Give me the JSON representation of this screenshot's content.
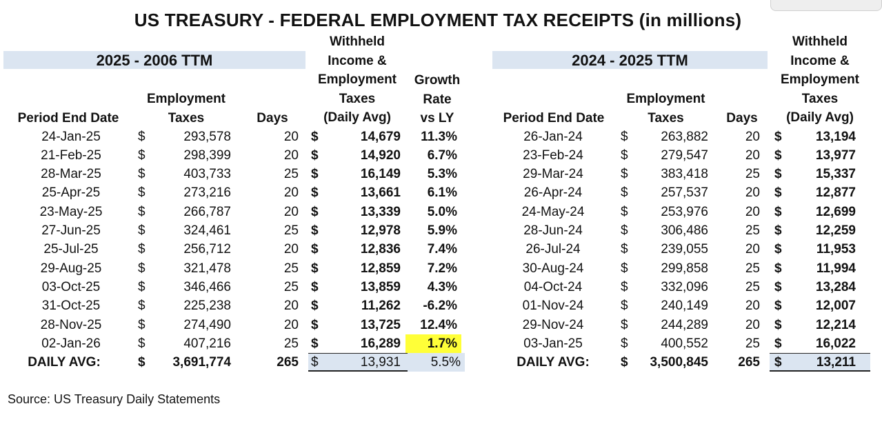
{
  "title": "US TREASURY - FEDERAL EMPLOYMENT TAX RECEIPTS (in millions)",
  "left": {
    "band": "2025 - 2006 TTM",
    "headers": {
      "date": "Period End Date",
      "taxes": "Employment\nTaxes",
      "days": "Days",
      "withheld": "Withheld\nIncome &\nEmployment\nTaxes\n(Daily Avg)",
      "growth": "Growth\nRate\nvs LY"
    },
    "rows": [
      {
        "date": "24-Jan-25",
        "cur": "$",
        "taxes": "293,578",
        "days": "20",
        "cur2": "$",
        "avg": "14,679",
        "growth": "11.3%"
      },
      {
        "date": "21-Feb-25",
        "cur": "$",
        "taxes": "298,399",
        "days": "20",
        "cur2": "$",
        "avg": "14,920",
        "growth": "6.7%"
      },
      {
        "date": "28-Mar-25",
        "cur": "$",
        "taxes": "403,733",
        "days": "25",
        "cur2": "$",
        "avg": "16,149",
        "growth": "5.3%"
      },
      {
        "date": "25-Apr-25",
        "cur": "$",
        "taxes": "273,216",
        "days": "20",
        "cur2": "$",
        "avg": "13,661",
        "growth": "6.1%"
      },
      {
        "date": "23-May-25",
        "cur": "$",
        "taxes": "266,787",
        "days": "20",
        "cur2": "$",
        "avg": "13,339",
        "growth": "5.0%"
      },
      {
        "date": "27-Jun-25",
        "cur": "$",
        "taxes": "324,461",
        "days": "25",
        "cur2": "$",
        "avg": "12,978",
        "growth": "5.9%"
      },
      {
        "date": "25-Jul-25",
        "cur": "$",
        "taxes": "256,712",
        "days": "20",
        "cur2": "$",
        "avg": "12,836",
        "growth": "7.4%"
      },
      {
        "date": "29-Aug-25",
        "cur": "$",
        "taxes": "321,478",
        "days": "25",
        "cur2": "$",
        "avg": "12,859",
        "growth": "7.2%"
      },
      {
        "date": "03-Oct-25",
        "cur": "$",
        "taxes": "346,466",
        "days": "25",
        "cur2": "$",
        "avg": "13,859",
        "growth": "4.3%"
      },
      {
        "date": "31-Oct-25",
        "cur": "$",
        "taxes": "225,238",
        "days": "20",
        "cur2": "$",
        "avg": "11,262",
        "growth": "-6.2%"
      },
      {
        "date": "28-Nov-25",
        "cur": "$",
        "taxes": "274,490",
        "days": "20",
        "cur2": "$",
        "avg": "13,725",
        "growth": "12.4%"
      },
      {
        "date": "02-Jan-26",
        "cur": "$",
        "taxes": "407,216",
        "days": "25",
        "cur2": "$",
        "avg": "16,289",
        "growth": "1.7%"
      }
    ],
    "total": {
      "label": "DAILY AVG:",
      "cur": "$",
      "taxes": "3,691,774",
      "days": "265",
      "cur2": "$",
      "avg": "13,931",
      "growth": "5.5%"
    },
    "highlight_color": "#ffff38"
  },
  "right": {
    "band": "2024 - 2025 TTM",
    "headers": {
      "date": "Period End Date",
      "taxes": "Employment\nTaxes",
      "days": "Days",
      "withheld": "Withheld\nIncome &\nEmployment\nTaxes\n(Daily Avg)"
    },
    "rows": [
      {
        "date": "26-Jan-24",
        "cur": "$",
        "taxes": "263,882",
        "days": "20",
        "cur2": "$",
        "avg": "13,194"
      },
      {
        "date": "23-Feb-24",
        "cur": "$",
        "taxes": "279,547",
        "days": "20",
        "cur2": "$",
        "avg": "13,977"
      },
      {
        "date": "29-Mar-24",
        "cur": "$",
        "taxes": "383,418",
        "days": "25",
        "cur2": "$",
        "avg": "15,337"
      },
      {
        "date": "26-Apr-24",
        "cur": "$",
        "taxes": "257,537",
        "days": "20",
        "cur2": "$",
        "avg": "12,877"
      },
      {
        "date": "24-May-24",
        "cur": "$",
        "taxes": "253,976",
        "days": "20",
        "cur2": "$",
        "avg": "12,699"
      },
      {
        "date": "28-Jun-24",
        "cur": "$",
        "taxes": "306,486",
        "days": "25",
        "cur2": "$",
        "avg": "12,259"
      },
      {
        "date": "26-Jul-24",
        "cur": "$",
        "taxes": "239,055",
        "days": "20",
        "cur2": "$",
        "avg": "11,953"
      },
      {
        "date": "30-Aug-24",
        "cur": "$",
        "taxes": "299,858",
        "days": "25",
        "cur2": "$",
        "avg": "11,994"
      },
      {
        "date": "04-Oct-24",
        "cur": "$",
        "taxes": "332,096",
        "days": "25",
        "cur2": "$",
        "avg": "13,284"
      },
      {
        "date": "01-Nov-24",
        "cur": "$",
        "taxes": "240,149",
        "days": "20",
        "cur2": "$",
        "avg": "12,007"
      },
      {
        "date": "29-Nov-24",
        "cur": "$",
        "taxes": "244,289",
        "days": "20",
        "cur2": "$",
        "avg": "12,214"
      },
      {
        "date": "03-Jan-25",
        "cur": "$",
        "taxes": "400,552",
        "days": "25",
        "cur2": "$",
        "avg": "16,022"
      }
    ],
    "total": {
      "label": "DAILY AVG:",
      "cur": "$",
      "taxes": "3,500,845",
      "days": "265",
      "cur2": "$",
      "avg": "13,211"
    }
  },
  "source": "Source: US Treasury Daily Statements",
  "colors": {
    "band": "#dbe5f1",
    "highlight": "#ffff38"
  }
}
